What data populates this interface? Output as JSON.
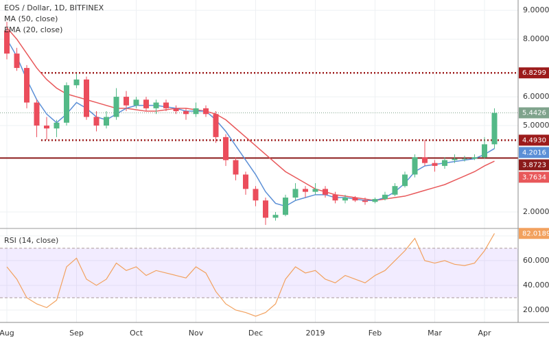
{
  "chart_data": {
    "type": "candlestick",
    "title": "EOS / Dollar, 1D, BITFINEX",
    "categories": [
      "Aug",
      null,
      null,
      null,
      null,
      null,
      null,
      "Sep",
      null,
      null,
      null,
      null,
      null,
      "Oct",
      null,
      null,
      null,
      null,
      null,
      "Nov",
      null,
      null,
      null,
      null,
      null,
      "Dec",
      null,
      null,
      null,
      null,
      null,
      "2019",
      null,
      null,
      null,
      null,
      null,
      "Feb",
      null,
      null,
      null,
      null,
      null,
      "Mar",
      null,
      null,
      null,
      null,
      "Apr",
      null
    ],
    "open": [
      8.3,
      7.5,
      7.0,
      5.8,
      5.0,
      4.9,
      5.1,
      6.4,
      6.6,
      5.3,
      5.0,
      5.3,
      6.0,
      5.7,
      5.9,
      5.6,
      5.8,
      5.6,
      5.5,
      5.4,
      5.6,
      5.4,
      4.6,
      3.8,
      3.3,
      2.8,
      2.4,
      1.8,
      1.9,
      2.5,
      2.8,
      2.7,
      2.8,
      2.6,
      2.4,
      2.5,
      2.4,
      2.35,
      2.45,
      2.6,
      2.9,
      3.3,
      3.9,
      3.7,
      3.6,
      3.8,
      3.85,
      3.85,
      3.9,
      4.35
    ],
    "high": [
      8.6,
      7.7,
      7.1,
      5.9,
      5.3,
      5.2,
      6.5,
      6.8,
      6.7,
      5.5,
      5.5,
      6.3,
      6.2,
      6.0,
      6.0,
      5.9,
      5.9,
      5.7,
      5.6,
      5.8,
      5.7,
      5.5,
      4.7,
      3.9,
      3.4,
      2.9,
      2.5,
      2.0,
      2.6,
      3.0,
      2.9,
      3.0,
      2.9,
      2.7,
      2.6,
      2.55,
      2.5,
      2.5,
      2.7,
      3.0,
      3.4,
      4.0,
      4.5,
      3.8,
      3.9,
      4.0,
      3.95,
      4.0,
      4.6,
      5.6
    ],
    "low": [
      7.3,
      6.9,
      5.6,
      4.6,
      4.5,
      4.6,
      5.0,
      6.3,
      5.2,
      4.8,
      4.9,
      5.2,
      5.5,
      5.6,
      5.5,
      5.4,
      5.5,
      5.4,
      5.2,
      5.3,
      5.3,
      4.4,
      3.6,
      3.1,
      2.6,
      2.2,
      1.55,
      1.7,
      1.85,
      2.4,
      2.5,
      2.6,
      2.5,
      2.3,
      2.3,
      2.35,
      2.25,
      2.3,
      2.4,
      2.55,
      2.85,
      3.2,
      3.6,
      3.4,
      3.5,
      3.7,
      3.75,
      3.8,
      3.85,
      4.2
    ],
    "close": [
      7.5,
      7.0,
      5.8,
      5.0,
      4.9,
      5.1,
      6.4,
      6.6,
      5.3,
      5.0,
      5.3,
      6.0,
      5.7,
      5.9,
      5.6,
      5.8,
      5.6,
      5.5,
      5.4,
      5.6,
      5.4,
      4.6,
      3.8,
      3.3,
      2.8,
      2.4,
      1.8,
      1.9,
      2.5,
      2.8,
      2.7,
      2.8,
      2.6,
      2.4,
      2.5,
      2.4,
      2.35,
      2.45,
      2.6,
      2.9,
      3.3,
      3.9,
      3.7,
      3.6,
      3.8,
      3.85,
      3.85,
      3.9,
      4.35,
      5.4426
    ],
    "up_color": "#53b987",
    "down_color": "#eb4d5c",
    "series": [
      {
        "name": "MA (50, close)",
        "color": "#e8585a",
        "values": [
          8.4,
          8.0,
          7.5,
          7.0,
          6.6,
          6.3,
          6.1,
          6.0,
          5.9,
          5.8,
          5.7,
          5.6,
          5.6,
          5.55,
          5.5,
          5.5,
          5.55,
          5.6,
          5.6,
          5.55,
          5.5,
          5.4,
          5.2,
          4.9,
          4.6,
          4.3,
          4.0,
          3.7,
          3.4,
          3.2,
          3.0,
          2.8,
          2.7,
          2.6,
          2.55,
          2.5,
          2.45,
          2.4,
          2.45,
          2.5,
          2.55,
          2.65,
          2.75,
          2.85,
          2.95,
          3.1,
          3.25,
          3.4,
          3.6,
          3.7634
        ]
      },
      {
        "name": "EMA (20, close)",
        "color": "#5b8fd6",
        "values": [
          8.0,
          7.4,
          6.6,
          5.9,
          5.4,
          5.1,
          5.4,
          5.8,
          5.6,
          5.3,
          5.2,
          5.4,
          5.6,
          5.7,
          5.7,
          5.7,
          5.65,
          5.6,
          5.5,
          5.5,
          5.5,
          5.2,
          4.8,
          4.3,
          3.8,
          3.3,
          2.7,
          2.3,
          2.2,
          2.4,
          2.5,
          2.6,
          2.6,
          2.5,
          2.5,
          2.45,
          2.4,
          2.4,
          2.5,
          2.7,
          3.0,
          3.4,
          3.6,
          3.65,
          3.7,
          3.75,
          3.8,
          3.85,
          4.0,
          4.2016
        ]
      }
    ],
    "levels": [
      {
        "value": 6.8299,
        "label": "6.8299",
        "color": "#9c1b1b",
        "style": "dotted"
      },
      {
        "value": 4.493,
        "label": "4.4930",
        "color": "#9c1b1b",
        "style": "dotted"
      },
      {
        "value": 3.8723,
        "label": "3.8723",
        "color": "#8b1a1a",
        "style": "solid"
      }
    ],
    "last_color": "#7fa38c",
    "ylim": [
      1.5,
      9.36
    ],
    "yticks": [
      {
        "value": 2,
        "label": "2.0000"
      },
      {
        "value": 5,
        "label": "5.0000"
      },
      {
        "value": 6,
        "label": "6.0000"
      },
      {
        "value": 8,
        "label": "8.0000"
      },
      {
        "value": 9,
        "label": "9.0000"
      }
    ],
    "rsi": {
      "name": "RSI (14, close)",
      "color": "#f2a15e",
      "values": [
        55,
        45,
        30,
        25,
        22,
        28,
        55,
        62,
        45,
        40,
        45,
        58,
        52,
        55,
        48,
        52,
        50,
        48,
        46,
        55,
        50,
        35,
        25,
        20,
        18,
        15,
        18,
        25,
        45,
        55,
        50,
        52,
        45,
        42,
        48,
        45,
        42,
        48,
        52,
        60,
        68,
        78,
        60,
        58,
        60,
        57,
        56,
        58,
        68,
        82.0189
      ],
      "ylim": [
        10,
        85.5
      ],
      "bands": [
        70,
        30
      ],
      "yticks": [
        {
          "value": 20,
          "label": "20.0000"
        },
        {
          "value": 40,
          "label": "40.0000"
        },
        {
          "value": 60,
          "label": "60.0000"
        },
        {
          "value": 80,
          "label": "80.0000"
        }
      ]
    }
  }
}
